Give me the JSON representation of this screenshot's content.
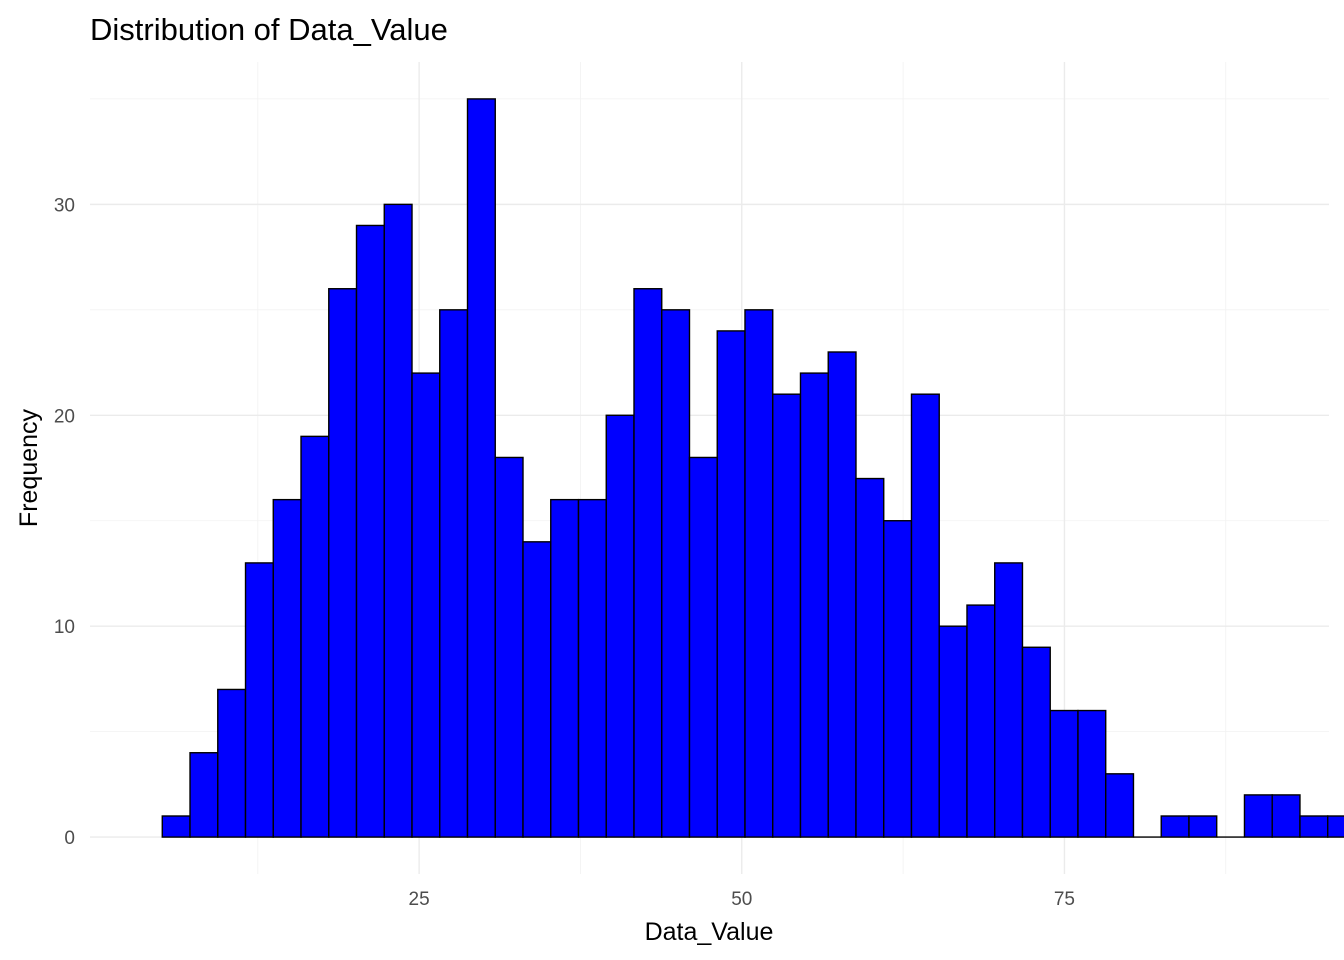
{
  "chart_data": {
    "type": "bar",
    "title": "Distribution of Data_Value",
    "xlabel": "Data_Value",
    "ylabel": "Frequency",
    "bin_width": 2.15,
    "bin_start": 5.1,
    "counts": [
      1,
      4,
      7,
      13,
      16,
      19,
      26,
      29,
      30,
      22,
      25,
      35,
      18,
      14,
      16,
      16,
      20,
      26,
      25,
      18,
      24,
      25,
      21,
      22,
      23,
      17,
      15,
      21,
      10,
      11,
      13,
      9,
      6,
      6,
      3,
      0,
      1,
      1,
      0,
      2,
      2,
      1,
      1
    ],
    "xlim": [
      -0.5,
      95.5
    ],
    "ylim": [
      -1.75,
      36.75
    ],
    "x_ticks": [
      25,
      50,
      75
    ],
    "x_tick_labels": [
      "25",
      "50",
      "75"
    ],
    "y_ticks": [
      0,
      10,
      20,
      30
    ],
    "y_tick_labels": [
      "0",
      "10",
      "20",
      "30"
    ],
    "grid": true,
    "bar_fill": "#0000ff",
    "bar_outline": "#000000",
    "background": "#ffffff"
  }
}
